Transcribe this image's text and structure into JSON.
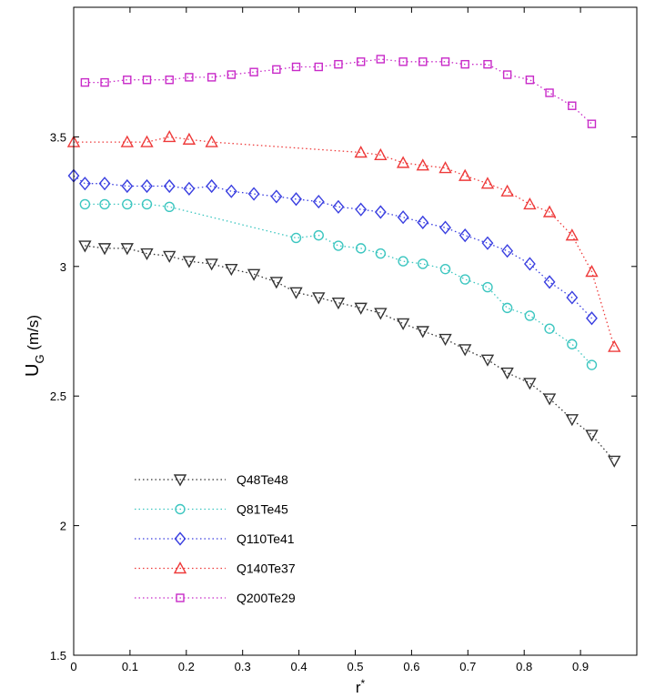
{
  "chart_data": {
    "type": "line",
    "xlabel": "r*",
    "ylabel": "U_G (m/s)",
    "xlim": [
      0,
      1
    ],
    "ylim": [
      1.5,
      4.0
    ],
    "x_ticks": [
      "0",
      "0.1",
      "0.2",
      "0.3",
      "0.4",
      "0.5",
      "0.6",
      "0.7",
      "0.8",
      "0.9"
    ],
    "y_ticks": [
      "1.5",
      "2",
      "2.5",
      "3",
      "3.5"
    ],
    "grid": false,
    "legend_position": "bottom-left",
    "series": [
      {
        "name": "Q48Te48",
        "color": "#333333",
        "marker": "triangle-down",
        "line_style": "dotted",
        "x": [
          0.02,
          0.055,
          0.095,
          0.13,
          0.17,
          0.205,
          0.245,
          0.28,
          0.32,
          0.36,
          0.395,
          0.435,
          0.47,
          0.51,
          0.545,
          0.585,
          0.62,
          0.66,
          0.695,
          0.735,
          0.77,
          0.81,
          0.845,
          0.885,
          0.92,
          0.96
        ],
        "y": [
          3.08,
          3.07,
          3.07,
          3.05,
          3.04,
          3.02,
          3.01,
          2.99,
          2.97,
          2.94,
          2.9,
          2.88,
          2.86,
          2.84,
          2.82,
          2.78,
          2.75,
          2.72,
          2.68,
          2.64,
          2.59,
          2.55,
          2.49,
          2.41,
          2.35,
          2.25
        ]
      },
      {
        "name": "Q81Te45",
        "color": "#3cc6c0",
        "marker": "circle",
        "line_style": "dotted",
        "x": [
          0.02,
          0.055,
          0.095,
          0.13,
          0.17,
          0.395,
          0.435,
          0.47,
          0.51,
          0.545,
          0.585,
          0.62,
          0.66,
          0.695,
          0.735,
          0.77,
          0.81,
          0.845,
          0.885,
          0.92
        ],
        "y": [
          3.24,
          3.24,
          3.24,
          3.24,
          3.23,
          3.11,
          3.12,
          3.08,
          3.07,
          3.05,
          3.02,
          3.01,
          2.99,
          2.95,
          2.92,
          2.84,
          2.81,
          2.76,
          2.7,
          2.62
        ]
      },
      {
        "name": "Q110Te41",
        "color": "#3a3fe0",
        "marker": "diamond",
        "line_style": "dotted",
        "x": [
          0.0,
          0.02,
          0.055,
          0.095,
          0.13,
          0.17,
          0.205,
          0.245,
          0.28,
          0.32,
          0.36,
          0.395,
          0.435,
          0.47,
          0.51,
          0.545,
          0.585,
          0.62,
          0.66,
          0.695,
          0.735,
          0.77,
          0.81,
          0.845,
          0.885,
          0.92
        ],
        "y": [
          3.35,
          3.32,
          3.32,
          3.31,
          3.31,
          3.31,
          3.3,
          3.31,
          3.29,
          3.28,
          3.27,
          3.26,
          3.25,
          3.23,
          3.22,
          3.21,
          3.19,
          3.17,
          3.15,
          3.12,
          3.09,
          3.06,
          3.01,
          2.94,
          2.88,
          2.8
        ]
      },
      {
        "name": "Q140Te37",
        "color": "#ee3a3a",
        "marker": "triangle-up",
        "line_style": "dotted",
        "x": [
          0.0,
          0.095,
          0.13,
          0.17,
          0.205,
          0.245,
          0.51,
          0.545,
          0.585,
          0.62,
          0.66,
          0.695,
          0.735,
          0.77,
          0.81,
          0.845,
          0.885,
          0.92,
          0.96
        ],
        "y": [
          3.48,
          3.48,
          3.48,
          3.5,
          3.49,
          3.48,
          3.44,
          3.43,
          3.4,
          3.39,
          3.38,
          3.35,
          3.32,
          3.29,
          3.24,
          3.21,
          3.12,
          2.98,
          2.69
        ]
      },
      {
        "name": "Q200Te29",
        "color": "#c82ac8",
        "marker": "square",
        "line_style": "dotted",
        "x": [
          0.02,
          0.055,
          0.095,
          0.13,
          0.17,
          0.205,
          0.245,
          0.28,
          0.32,
          0.36,
          0.395,
          0.435,
          0.47,
          0.51,
          0.545,
          0.585,
          0.62,
          0.66,
          0.695,
          0.735,
          0.77,
          0.81,
          0.845,
          0.885,
          0.92
        ],
        "y": [
          3.71,
          3.71,
          3.72,
          3.72,
          3.72,
          3.73,
          3.73,
          3.74,
          3.75,
          3.76,
          3.77,
          3.77,
          3.78,
          3.79,
          3.8,
          3.79,
          3.79,
          3.79,
          3.78,
          3.78,
          3.74,
          3.72,
          3.67,
          3.62,
          3.55
        ]
      }
    ]
  }
}
